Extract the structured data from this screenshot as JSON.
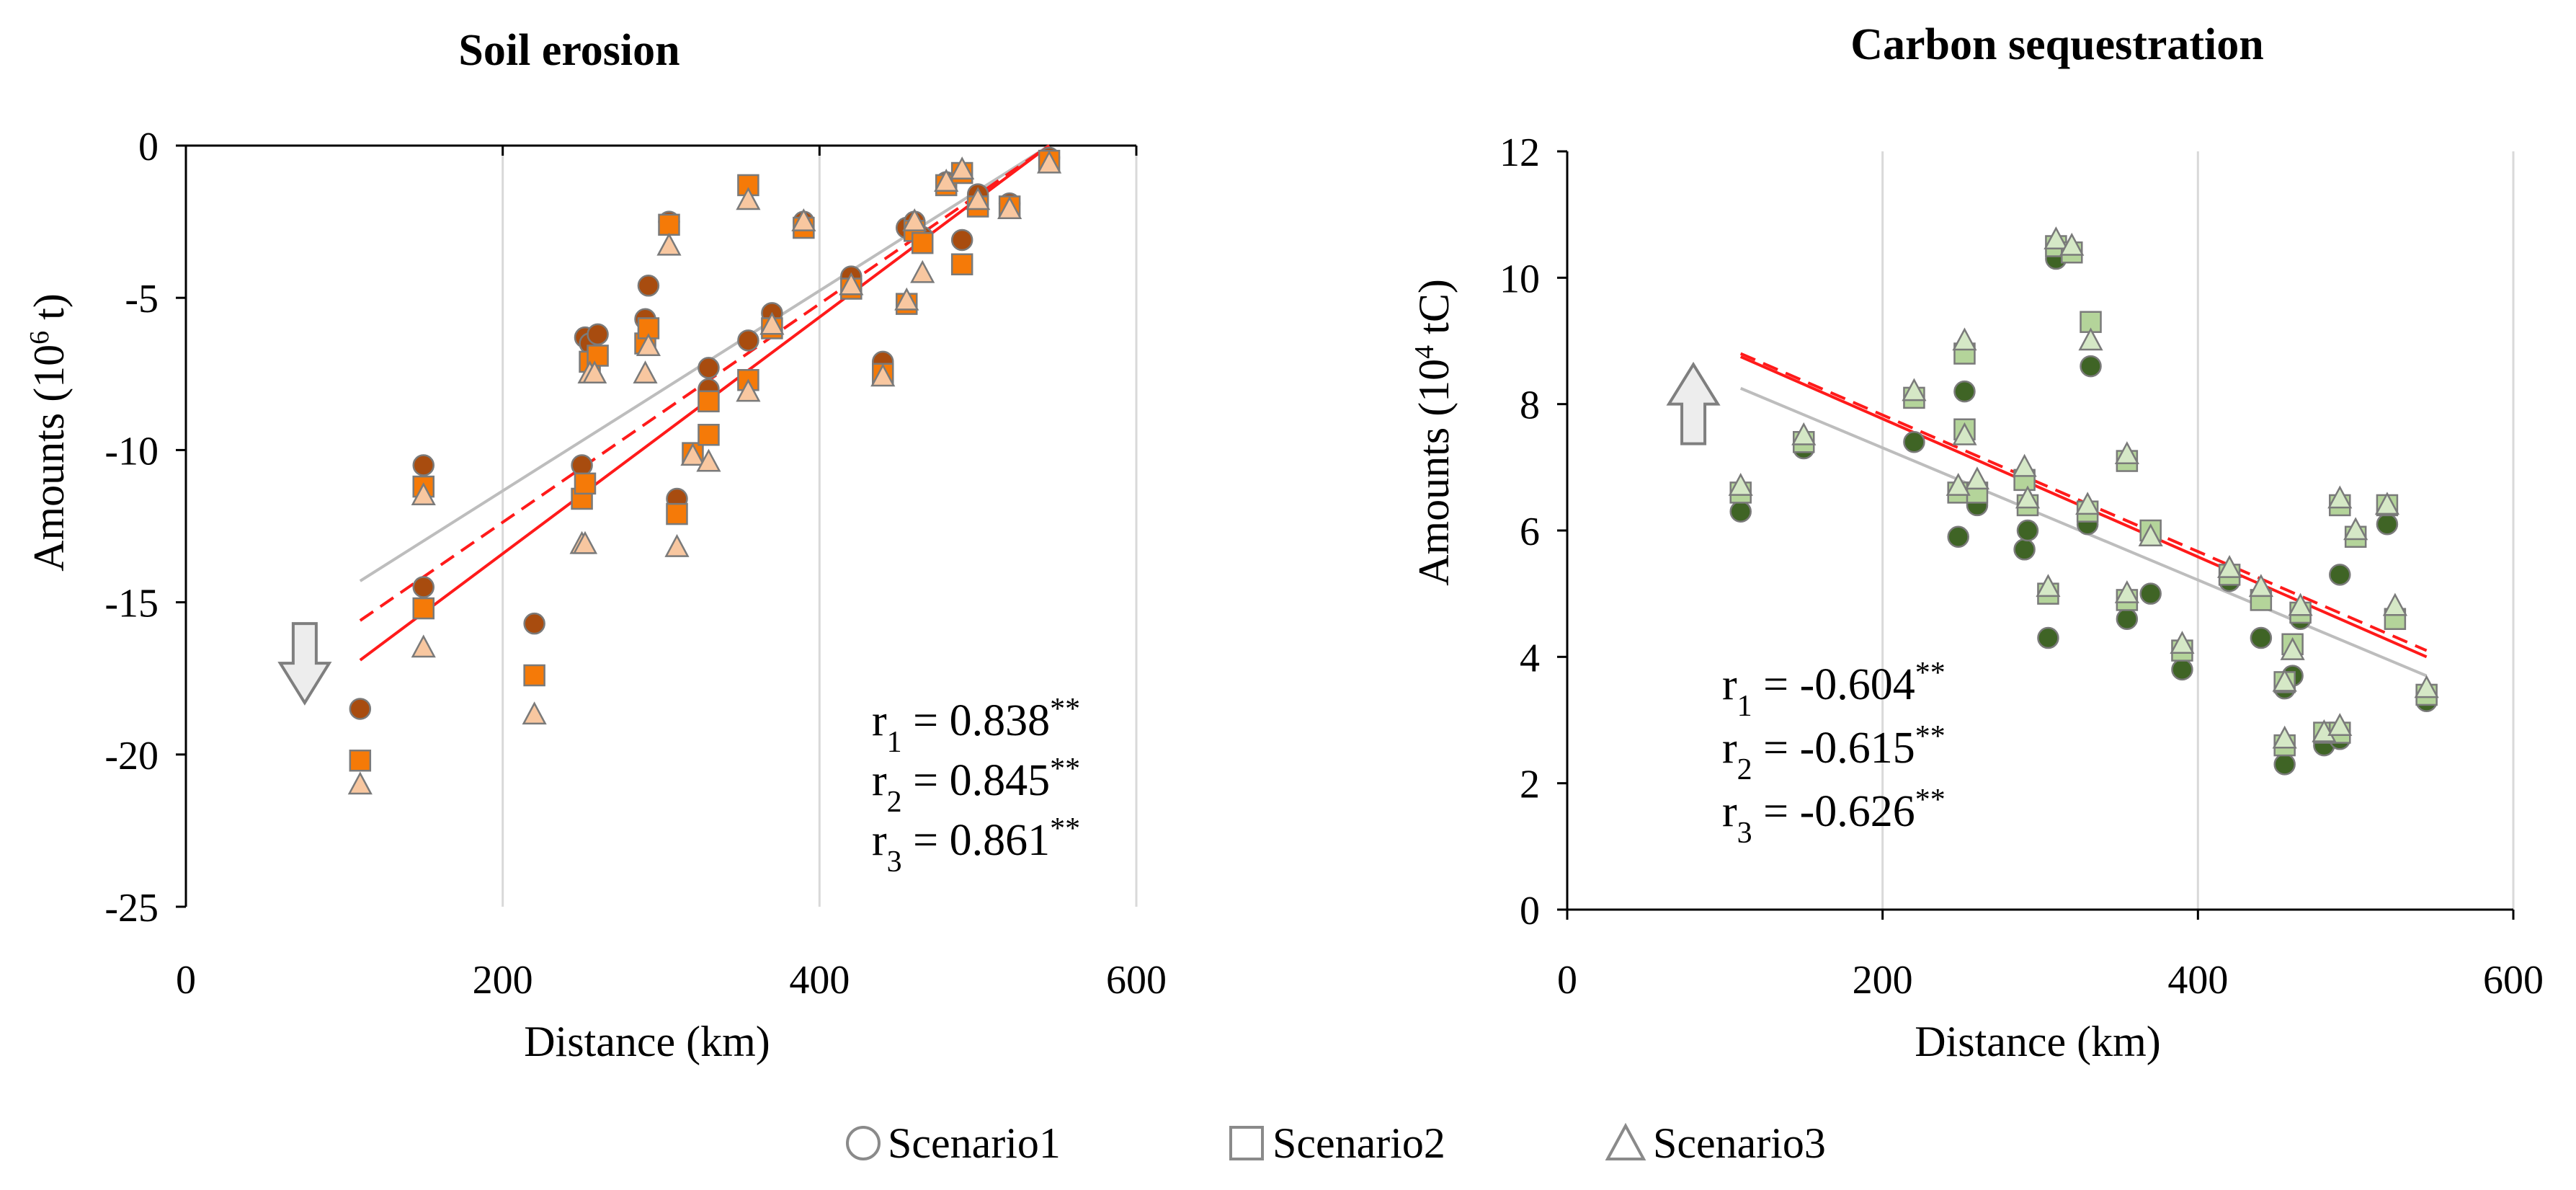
{
  "colors": {
    "erosion_s1": "#A84C0F",
    "erosion_s2": "#F57A08",
    "erosion_s3": "#F8C7A0",
    "carbon_s1": "#3F6425",
    "carbon_s2": "#B4D49A",
    "carbon_s3": "#D5E8C6",
    "grid": "#D9D9D9",
    "trend_red": "#FF1A1A",
    "trend_gray": "#BDBDBD",
    "arrow_fill": "#EDEDED",
    "arrow_stroke": "#7F7F7F"
  },
  "legend": {
    "items": [
      {
        "label": "Scenario1",
        "marker": "circle"
      },
      {
        "label": "Scenario2",
        "marker": "square"
      },
      {
        "label": "Scenario3",
        "marker": "triangle"
      }
    ]
  },
  "chart_data": [
    {
      "type": "scatter",
      "title": "Soil erosion",
      "xlabel": "Distance (km)",
      "ylabel_prefix": "Amounts (10",
      "ylabel_sup": "6",
      "ylabel_suffix": " t)",
      "xlim": [
        0,
        600
      ],
      "ylim": [
        -25,
        0
      ],
      "xticks": [
        0,
        200,
        400,
        600
      ],
      "yticks": [
        0,
        -5,
        -10,
        -15,
        -20,
        -25
      ],
      "arrow_direction": "down",
      "arrow_value": [
        75,
        -17
      ],
      "stats": [
        {
          "label": "r",
          "sub": "1",
          "value": " = 0.838",
          "sig": "**"
        },
        {
          "label": "r",
          "sub": "2",
          "value": " = 0.845",
          "sig": "**"
        },
        {
          "label": "r",
          "sub": "3",
          "value": " = 0.861",
          "sig": "**"
        }
      ],
      "series": [
        {
          "name": "Scenario1",
          "marker": "circle",
          "x": [
            110,
            150,
            150,
            220,
            250,
            252,
            255,
            260,
            290,
            292,
            305,
            310,
            330,
            330,
            355,
            370,
            390,
            420,
            440,
            455,
            460,
            465,
            480,
            490,
            500,
            520,
            545
          ],
          "y": [
            -18.5,
            -10.5,
            -14.5,
            -15.7,
            -10.5,
            -6.3,
            -6.5,
            -6.2,
            -5.7,
            -4.6,
            -2.5,
            -11.6,
            -7.3,
            -8.0,
            -6.4,
            -5.5,
            -2.5,
            -4.3,
            -7.1,
            -2.7,
            -2.5,
            -3.0,
            -1.2,
            -3.1,
            -1.6,
            -1.9,
            -0.4
          ]
        },
        {
          "name": "Scenario2",
          "marker": "square",
          "x": [
            110,
            150,
            150,
            220,
            250,
            252,
            255,
            260,
            290,
            292,
            305,
            310,
            320,
            330,
            330,
            355,
            355,
            370,
            390,
            420,
            440,
            455,
            460,
            465,
            480,
            490,
            490,
            500,
            520,
            545
          ],
          "y": [
            -20.2,
            -11.2,
            -15.2,
            -17.4,
            -11.6,
            -11.1,
            -7.1,
            -6.9,
            -6.5,
            -6.0,
            -2.6,
            -12.1,
            -10.1,
            -9.5,
            -8.4,
            -1.3,
            -7.7,
            -6.0,
            -2.7,
            -4.7,
            -7.5,
            -5.2,
            -2.8,
            -3.2,
            -1.3,
            -0.9,
            -3.9,
            -2.0,
            -2.0,
            -0.5
          ]
        },
        {
          "name": "Scenario3",
          "marker": "triangle",
          "x": [
            110,
            150,
            150,
            220,
            250,
            252,
            255,
            258,
            290,
            292,
            305,
            310,
            320,
            330,
            355,
            355,
            370,
            390,
            420,
            440,
            455,
            460,
            465,
            480,
            490,
            500,
            520,
            545
          ],
          "y": [
            -21,
            -11.5,
            -16.5,
            -18.7,
            -13.1,
            -13.1,
            -7.5,
            -7.5,
            -7.5,
            -6.6,
            -3.3,
            -13.2,
            -10.2,
            -10.4,
            -1.8,
            -8.1,
            -5.9,
            -2.5,
            -4.6,
            -7.6,
            -5.1,
            -2.5,
            -4.2,
            -1.2,
            -0.8,
            -1.8,
            -2.1,
            -0.6
          ]
        }
      ],
      "trendlines": [
        {
          "style": "gray-solid",
          "x": [
            110,
            545
          ],
          "y": [
            -14.3,
            0
          ]
        },
        {
          "style": "red-dashed",
          "x": [
            110,
            545
          ],
          "y": [
            -15.6,
            0
          ]
        },
        {
          "style": "red-solid",
          "x": [
            110,
            545
          ],
          "y": [
            -16.9,
            0
          ]
        }
      ]
    },
    {
      "type": "scatter",
      "title": "Carbon sequestration",
      "xlabel": "Distance (km)",
      "ylabel_prefix": "Amounts (10",
      "ylabel_sup": "4",
      "ylabel_suffix": " tC)",
      "xlim": [
        0,
        600
      ],
      "ylim": [
        0,
        12
      ],
      "xticks": [
        0,
        200,
        400,
        600
      ],
      "yticks": [
        0,
        2,
        4,
        6,
        8,
        10,
        12
      ],
      "arrow_direction": "up",
      "arrow_value": [
        80,
        8
      ],
      "stats": [
        {
          "label": "r",
          "sub": "1",
          "value": " = -0.604",
          "sig": "**"
        },
        {
          "label": "r",
          "sub": "2",
          "value": " = -0.615",
          "sig": "**"
        },
        {
          "label": "r",
          "sub": "3",
          "value": " = -0.626",
          "sig": "**"
        }
      ],
      "series": [
        {
          "name": "Scenario1",
          "marker": "circle",
          "x": [
            110,
            150,
            220,
            248,
            252,
            260,
            290,
            292,
            305,
            310,
            330,
            332,
            355,
            370,
            390,
            420,
            440,
            455,
            455,
            460,
            465,
            480,
            490,
            490,
            500,
            520,
            545
          ],
          "y": [
            6.3,
            7.3,
            7.4,
            5.9,
            8.2,
            6.4,
            5.7,
            6.0,
            4.3,
            10.3,
            6.1,
            8.6,
            4.6,
            5.0,
            3.8,
            5.2,
            4.3,
            3.5,
            2.3,
            3.7,
            4.6,
            2.6,
            2.7,
            5.3,
            5.9,
            6.1,
            3.3
          ]
        },
        {
          "name": "Scenario2",
          "marker": "square",
          "x": [
            110,
            150,
            220,
            248,
            252,
            252,
            260,
            290,
            292,
            305,
            310,
            320,
            330,
            332,
            355,
            355,
            370,
            390,
            420,
            440,
            455,
            455,
            460,
            465,
            480,
            490,
            490,
            500,
            520,
            525,
            545
          ],
          "y": [
            6.6,
            7.4,
            8.1,
            6.6,
            8.8,
            7.6,
            6.6,
            6.8,
            6.4,
            5.0,
            10.5,
            10.4,
            6.3,
            9.3,
            7.1,
            4.9,
            6.0,
            4.1,
            5.3,
            4.9,
            3.6,
            2.6,
            4.2,
            4.7,
            2.8,
            2.8,
            6.4,
            5.9,
            6.4,
            4.6,
            3.4
          ]
        },
        {
          "name": "Scenario3",
          "marker": "triangle",
          "x": [
            110,
            150,
            220,
            248,
            252,
            252,
            260,
            290,
            292,
            305,
            310,
            320,
            330,
            332,
            355,
            355,
            370,
            390,
            420,
            440,
            455,
            455,
            460,
            465,
            480,
            490,
            490,
            500,
            520,
            525,
            545
          ],
          "y": [
            6.7,
            7.5,
            8.2,
            6.7,
            9.0,
            7.5,
            6.8,
            7.0,
            6.5,
            5.1,
            10.6,
            10.5,
            6.4,
            9.0,
            7.2,
            5.0,
            5.9,
            4.2,
            5.4,
            5.1,
            3.6,
            2.7,
            4.1,
            4.8,
            2.8,
            2.9,
            6.5,
            6.0,
            6.4,
            4.8,
            3.5
          ]
        }
      ],
      "trendlines": [
        {
          "style": "gray-solid",
          "x": [
            110,
            545
          ],
          "y": [
            8.25,
            3.7
          ]
        },
        {
          "style": "red-dashed",
          "x": [
            110,
            545
          ],
          "y": [
            8.8,
            4.1
          ]
        },
        {
          "style": "red-solid",
          "x": [
            110,
            545
          ],
          "y": [
            8.75,
            4.0
          ]
        }
      ]
    }
  ]
}
